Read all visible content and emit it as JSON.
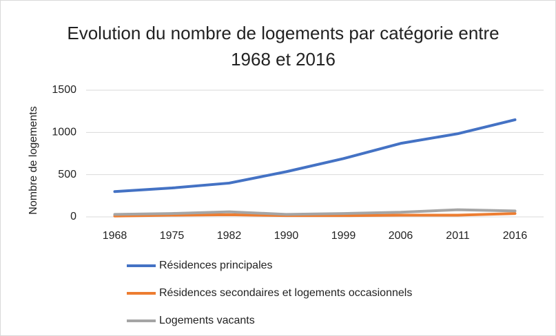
{
  "chart_data": {
    "type": "line",
    "title": "Evolution du nombre de logements par catégorie entre 1968 et 2016",
    "y_label": "Nombre de logements",
    "categories": [
      "1968",
      "1975",
      "1982",
      "1990",
      "1999",
      "2006",
      "2011",
      "2016"
    ],
    "series": [
      {
        "name": "Résidences principales",
        "color": "#4472c4",
        "values": [
          300,
          342,
          400,
          535,
          690,
          870,
          985,
          1150
        ]
      },
      {
        "name": "Résidences secondaires et logements occasionnels",
        "color": "#ed7d31",
        "values": [
          10,
          20,
          25,
          15,
          15,
          20,
          20,
          40
        ]
      },
      {
        "name": "Logements vacants",
        "color": "#a5a5a5",
        "values": [
          30,
          40,
          60,
          30,
          40,
          55,
          85,
          70
        ]
      }
    ],
    "ylim": [
      0,
      1500
    ],
    "yticks": [
      0,
      500,
      1000,
      1500
    ],
    "grid": true,
    "legend": "bottom"
  }
}
